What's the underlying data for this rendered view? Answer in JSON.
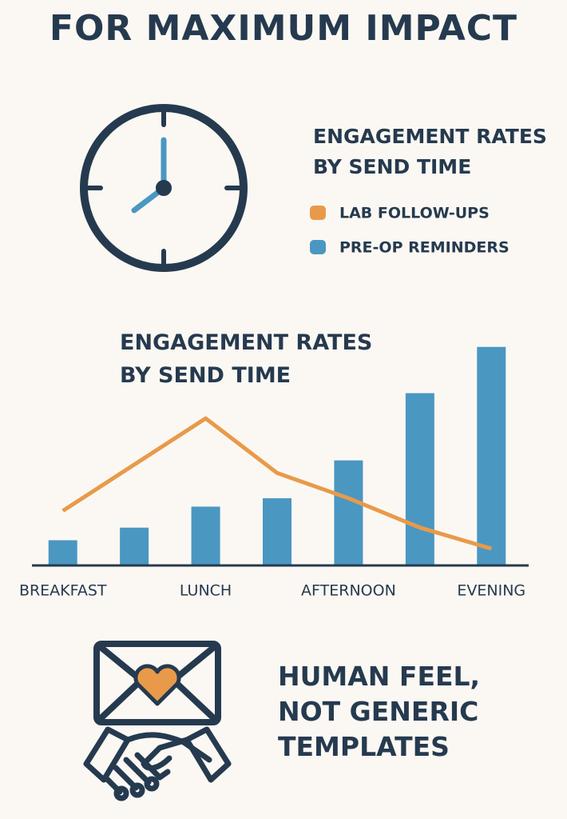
{
  "title": "FOR MAXIMUM IMPACT",
  "legend_heading": "ENGAGEMENT RATES BY SEND TIME",
  "footer_text": "HUMAN FEEL, NOT GENERIC TEMPLATES",
  "chart_data": {
    "type": "bar",
    "title": "ENGAGEMENT RATES BY SEND TIME",
    "categories": [
      "BREAKFAST",
      null,
      "LUNCH",
      null,
      "AFTERNOON",
      null,
      "EVENING"
    ],
    "series": [
      {
        "name": "LAB FOLLOW-UPS",
        "type": "line",
        "color": "#e89a4a",
        "values": [
          13,
          24,
          35,
          22,
          16,
          9,
          4
        ]
      },
      {
        "name": "PRE-OP REMINDERS",
        "type": "bar",
        "color": "#4a97c2",
        "values": [
          6,
          9,
          14,
          16,
          25,
          41,
          52
        ]
      }
    ],
    "ylim": [
      0,
      55
    ]
  }
}
